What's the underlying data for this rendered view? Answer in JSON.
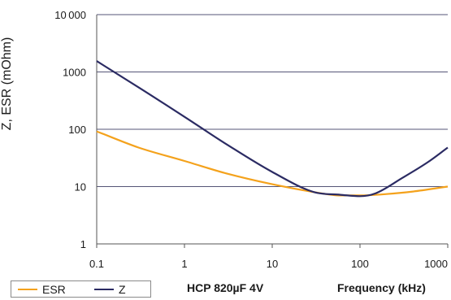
{
  "chart_data": {
    "type": "line",
    "ylabel": "Z, ESR (mOhm)",
    "xlabel": "Frequency (kHz)",
    "x_scale": "log",
    "y_scale": "log",
    "xlim": [
      0.1,
      1000
    ],
    "ylim": [
      1,
      10000
    ],
    "x_ticks": [
      "0.1",
      "1",
      "10",
      "100",
      "1000"
    ],
    "y_ticks": [
      "1",
      "10",
      "100",
      "1000",
      "10000"
    ],
    "grid": "horizontal",
    "series": [
      {
        "name": "ESR",
        "color": "#f4a21c",
        "x": [
          0.1,
          0.3,
          1,
          3,
          10,
          30,
          60,
          100,
          200,
          400,
          1000
        ],
        "y": [
          92,
          48,
          28,
          17,
          11,
          8,
          7,
          7,
          7.4,
          8.2,
          10
        ]
      },
      {
        "name": "Z",
        "color": "#2b2b63",
        "x": [
          0.1,
          0.3,
          1,
          3,
          10,
          30,
          60,
          100,
          150,
          300,
          600,
          1000
        ],
        "y": [
          1550,
          540,
          165,
          55,
          18,
          8,
          7.2,
          6.8,
          7.6,
          14,
          27,
          48
        ]
      }
    ]
  },
  "legend": {
    "esr_label": "ESR",
    "z_label": "Z"
  },
  "caption": {
    "product": "HCP 820µF 4V",
    "axis_title": "Frequency (kHz)"
  }
}
